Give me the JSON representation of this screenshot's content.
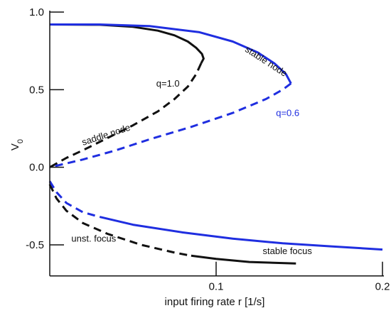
{
  "chart_data": {
    "type": "line",
    "title": "",
    "xlabel": "input firing rate r [1/s]",
    "ylabel_main": "V",
    "ylabel_sub": "0",
    "xlim": [
      0,
      0.2
    ],
    "ylim": [
      -0.7,
      1.0
    ],
    "x_ticks": [
      {
        "value": 0.1,
        "label": "0.1"
      },
      {
        "value": 0.2,
        "label": "0.2"
      }
    ],
    "y_ticks": [
      {
        "value": 1.0,
        "label": "1.0"
      },
      {
        "value": 0.5,
        "label": "0.5"
      },
      {
        "value": 0.0,
        "label": "0.0"
      },
      {
        "value": -0.5,
        "label": "-0.5"
      }
    ],
    "colors": {
      "q10": "#111111",
      "q06": "#1f2ee0",
      "axis": "#111111"
    },
    "series": [
      {
        "name": "q=1.0",
        "style": "solid",
        "color": "#111111",
        "x": [
          0.0,
          0.03,
          0.05,
          0.065,
          0.075,
          0.083,
          0.088,
          0.0915,
          0.0925,
          0.091
        ],
        "y": [
          0.92,
          0.918,
          0.905,
          0.88,
          0.85,
          0.81,
          0.77,
          0.73,
          0.7,
          0.67
        ]
      },
      {
        "name": "q=1.0",
        "style": "dashed",
        "color": "#111111",
        "x": [
          0.091,
          0.088,
          0.083,
          0.075,
          0.065,
          0.05,
          0.035,
          0.02,
          0.01,
          0.0
        ],
        "y": [
          0.67,
          0.6,
          0.52,
          0.44,
          0.36,
          0.27,
          0.19,
          0.11,
          0.06,
          0.0
        ]
      },
      {
        "name": "q=0.6",
        "style": "solid",
        "color": "#1f2ee0",
        "x": [
          0.0,
          0.03,
          0.06,
          0.09,
          0.11,
          0.125,
          0.135,
          0.142,
          0.145
        ],
        "y": [
          0.92,
          0.92,
          0.91,
          0.87,
          0.81,
          0.74,
          0.67,
          0.6,
          0.54
        ]
      },
      {
        "name": "q=0.6",
        "style": "dashed",
        "color": "#1f2ee0",
        "x": [
          0.145,
          0.14,
          0.13,
          0.11,
          0.085,
          0.06,
          0.04,
          0.02,
          0.0
        ],
        "y": [
          0.54,
          0.5,
          0.44,
          0.35,
          0.26,
          0.18,
          0.11,
          0.05,
          0.0
        ]
      },
      {
        "name": "q=1.0",
        "style": "dashed",
        "color": "#111111",
        "x": [
          0.0,
          0.004,
          0.01,
          0.02,
          0.035,
          0.055,
          0.075,
          0.085
        ],
        "y": [
          -0.11,
          -0.2,
          -0.28,
          -0.36,
          -0.43,
          -0.5,
          -0.55,
          -0.57
        ]
      },
      {
        "name": "q=1.0",
        "style": "solid",
        "color": "#111111",
        "x": [
          0.085,
          0.1,
          0.12,
          0.148
        ],
        "y": [
          -0.57,
          -0.59,
          -0.61,
          -0.62
        ]
      },
      {
        "name": "q=0.6",
        "style": "dashed",
        "color": "#1f2ee0",
        "x": [
          0.0,
          0.004,
          0.01,
          0.02,
          0.03
        ],
        "y": [
          -0.09,
          -0.16,
          -0.23,
          -0.29,
          -0.32
        ]
      },
      {
        "name": "q=0.6",
        "style": "solid",
        "color": "#1f2ee0",
        "x": [
          0.03,
          0.05,
          0.08,
          0.11,
          0.14,
          0.17,
          0.2
        ],
        "y": [
          -0.32,
          -0.37,
          -0.42,
          -0.46,
          -0.49,
          -0.51,
          -0.53
        ]
      }
    ],
    "annotations": [
      {
        "id": "stable-node",
        "text": "stable node",
        "x": 0.117,
        "y": 0.75,
        "rotate": 33,
        "color": "#111111"
      },
      {
        "id": "q10",
        "text": "q=1.0",
        "x": 0.064,
        "y": 0.52,
        "rotate": 0,
        "color": "#111111"
      },
      {
        "id": "q06",
        "text": "q=0.6",
        "x": 0.136,
        "y": 0.33,
        "rotate": 0,
        "color": "#1f2ee0"
      },
      {
        "id": "saddle-node",
        "text": "saddle node",
        "x": 0.02,
        "y": 0.14,
        "rotate": -18,
        "color": "#111111"
      },
      {
        "id": "unst-focus",
        "text": "unst. focus",
        "x": 0.013,
        "y": -0.48,
        "rotate": 0,
        "color": "#111111"
      },
      {
        "id": "stable-focus",
        "text": "stable focus",
        "x": 0.128,
        "y": -0.56,
        "rotate": 0,
        "color": "#111111"
      }
    ]
  }
}
